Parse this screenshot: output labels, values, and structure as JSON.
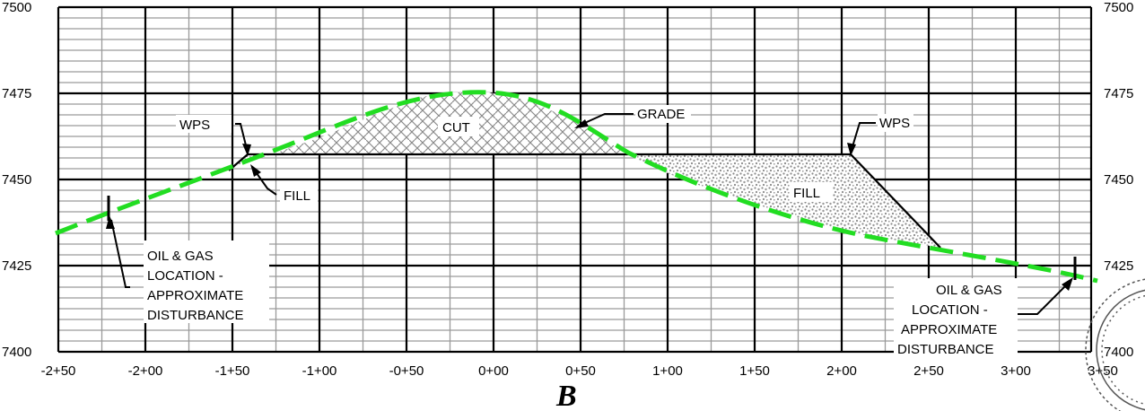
{
  "section_letter": "B",
  "y_ticks": [
    "7500",
    "7475",
    "7450",
    "7425",
    "7400"
  ],
  "y_ticks_right": [
    "7500",
    "7475",
    "7450",
    "7425",
    "7400"
  ],
  "x_ticks": [
    "-2+50",
    "-2+00",
    "-1+50",
    "-1+00",
    "-0+50",
    "0+00",
    "0+50",
    "1+00",
    "1+50",
    "2+00",
    "2+50",
    "3+00",
    "3+50"
  ],
  "labels": {
    "wps_left": "WPS",
    "wps_right": "WPS",
    "grade": "GRADE",
    "cut": "CUT",
    "fill_left": "FILL",
    "fill_right": "FILL",
    "oil_gas_left": [
      "OIL & GAS",
      "LOCATION -",
      "APPROXIMATE",
      "DISTURBANCE"
    ],
    "oil_gas_right": [
      "OIL & GAS",
      "LOCATION -",
      "APPROXIMATE",
      "DISTURBANCE"
    ]
  },
  "colors": {
    "grade_line": "#22dd22",
    "grid_minor": "#9a9a9a",
    "grid_major": "#000000",
    "hatch": "#999999"
  }
}
